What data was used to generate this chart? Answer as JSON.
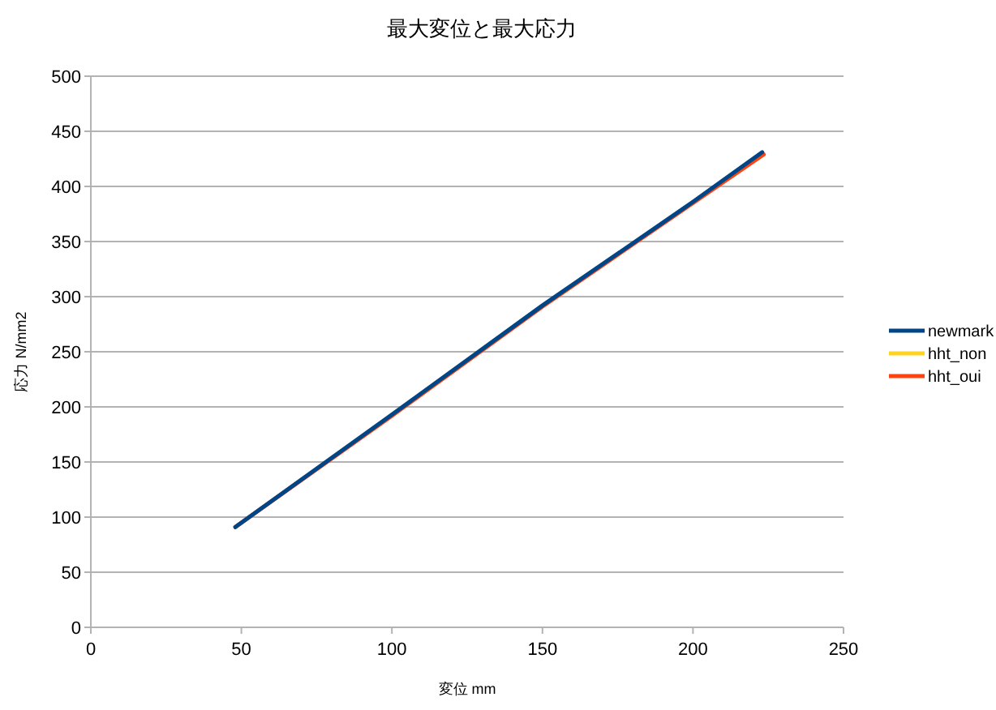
{
  "chart_data": {
    "type": "line",
    "title": "最大変位と最大応力",
    "xlabel": "変位 mm",
    "ylabel": "応力 N/mm2",
    "xlim": [
      0,
      250
    ],
    "xticks": [
      0,
      50,
      100,
      150,
      200,
      250
    ],
    "ylim": [
      0,
      500
    ],
    "yticks": [
      0,
      50,
      100,
      150,
      200,
      250,
      300,
      350,
      400,
      450,
      500
    ],
    "grid": "y",
    "legend": "right",
    "marker": "none",
    "series": [
      {
        "name": "newmark",
        "color": "#004586",
        "x": [
          48,
          100,
          150,
          200,
          223
        ],
        "values": [
          91,
          193,
          292,
          386,
          431
        ]
      },
      {
        "name": "hht_non",
        "color": "#ffd320"
      },
      {
        "name": "hht_oui",
        "color": "#ff420e",
        "x": [
          48,
          100,
          150,
          200,
          223.5
        ],
        "values": [
          91,
          192,
          291,
          385,
          429
        ]
      }
    ]
  }
}
